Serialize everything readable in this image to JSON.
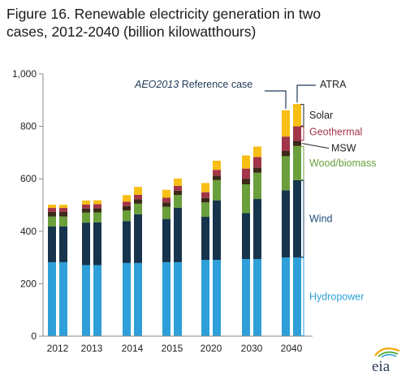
{
  "title": "Figure 16. Renewable electricity generation in two cases, 2012-2040 (billion kilowatthours)",
  "logo_text": "eia",
  "colors": {
    "hydropower": "#2e9fd8",
    "wind": "#17344d",
    "wood_biomass": "#6a9f3c",
    "msw": "#3b2a17",
    "geothermal": "#a23549",
    "solar": "#f7be15",
    "annotation_line": "#1f3b57",
    "axis": "#888888"
  },
  "annotations": {
    "reference_case_italic": "AEO2013",
    "reference_case_rest": " Reference case",
    "atra": "ATRA"
  },
  "chart_data": {
    "type": "bar",
    "stacked": true,
    "ylim": [
      0,
      1000
    ],
    "yticks": [
      "0",
      "200",
      "400",
      "600",
      "800",
      "1,000"
    ],
    "xlabel": "",
    "ylabel": "",
    "grid": false,
    "categories": [
      "2012",
      "2013",
      "2014",
      "2015",
      "2020",
      "2030",
      "2040"
    ],
    "cases": [
      "AEO2013 Reference case",
      "ATRA"
    ],
    "series": [
      {
        "name": "Hydropower",
        "color": "#2e9fd8",
        "values": [
          [
            282,
            282
          ],
          [
            271,
            271
          ],
          [
            279,
            279
          ],
          [
            282,
            282
          ],
          [
            291,
            291
          ],
          [
            294,
            294
          ],
          [
            300,
            300
          ]
        ]
      },
      {
        "name": "Wind",
        "color": "#17344d",
        "values": [
          [
            136,
            136
          ],
          [
            162,
            163
          ],
          [
            160,
            186
          ],
          [
            165,
            208
          ],
          [
            164,
            227
          ],
          [
            175,
            229
          ],
          [
            256,
            295
          ]
        ]
      },
      {
        "name": "Wood/biomass",
        "color": "#6a9f3c",
        "values": [
          [
            38,
            38
          ],
          [
            38,
            38
          ],
          [
            40,
            40
          ],
          [
            46,
            48
          ],
          [
            55,
            77
          ],
          [
            110,
            100
          ],
          [
            130,
            130
          ]
        ]
      },
      {
        "name": "MSW",
        "color": "#3b2a17",
        "values": [
          [
            18,
            18
          ],
          [
            16,
            16
          ],
          [
            17,
            17
          ],
          [
            17,
            17
          ],
          [
            17,
            17
          ],
          [
            20,
            20
          ],
          [
            20,
            20
          ]
        ]
      },
      {
        "name": "Geothermal",
        "color": "#a23549",
        "values": [
          [
            15,
            15
          ],
          [
            15,
            15
          ],
          [
            17,
            17
          ],
          [
            18,
            18
          ],
          [
            22,
            22
          ],
          [
            40,
            40
          ],
          [
            55,
            55
          ]
        ]
      },
      {
        "name": "Solar",
        "color": "#f7be15",
        "values": [
          [
            12,
            12
          ],
          [
            15,
            15
          ],
          [
            25,
            30
          ],
          [
            30,
            28
          ],
          [
            35,
            35
          ],
          [
            50,
            40
          ],
          [
            100,
            85
          ]
        ]
      }
    ]
  }
}
